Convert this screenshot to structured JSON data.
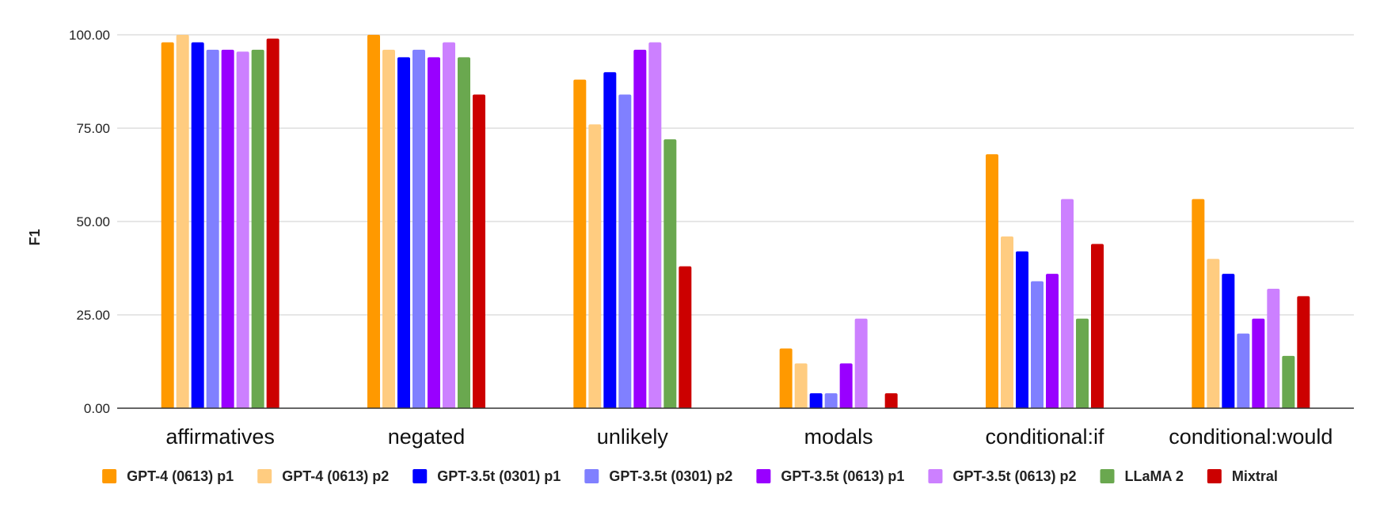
{
  "chart_data": {
    "type": "bar",
    "title": "",
    "xlabel": "",
    "ylabel": "F1",
    "ylim": [
      0,
      100
    ],
    "yticks": [
      "0.00",
      "25.00",
      "50.00",
      "75.00",
      "100.00"
    ],
    "grid": true,
    "legend_position": "bottom",
    "categories": [
      "affirmatives",
      "negated",
      "unlikely",
      "modals",
      "conditional:if",
      "conditional:would"
    ],
    "series": [
      {
        "name": "GPT-4 (0613) p1",
        "color": "#ff9900",
        "values": [
          98,
          100,
          88,
          16,
          68,
          56
        ]
      },
      {
        "name": "GPT-4 (0613) p2",
        "color": "#ffcc80",
        "values": [
          100,
          96,
          76,
          12,
          46,
          40
        ]
      },
      {
        "name": "GPT-3.5t (0301) p1",
        "color": "#0000ff",
        "values": [
          98,
          94,
          90,
          4,
          42,
          36
        ]
      },
      {
        "name": "GPT-3.5t (0301) p2",
        "color": "#8080ff",
        "values": [
          96,
          96,
          84,
          4,
          34,
          20
        ]
      },
      {
        "name": "GPT-3.5t (0613) p1",
        "color": "#9900ff",
        "values": [
          96,
          94,
          96,
          12,
          36,
          24
        ]
      },
      {
        "name": "GPT-3.5t (0613) p2",
        "color": "#cc80ff",
        "values": [
          95.5,
          98,
          98,
          24,
          56,
          32
        ]
      },
      {
        "name": "LLaMA 2",
        "color": "#6aa84f",
        "values": [
          96,
          94,
          72,
          0,
          24,
          14
        ]
      },
      {
        "name": "Mixtral",
        "color": "#cc0000",
        "values": [
          99,
          84,
          38,
          4,
          44,
          30
        ]
      }
    ]
  }
}
